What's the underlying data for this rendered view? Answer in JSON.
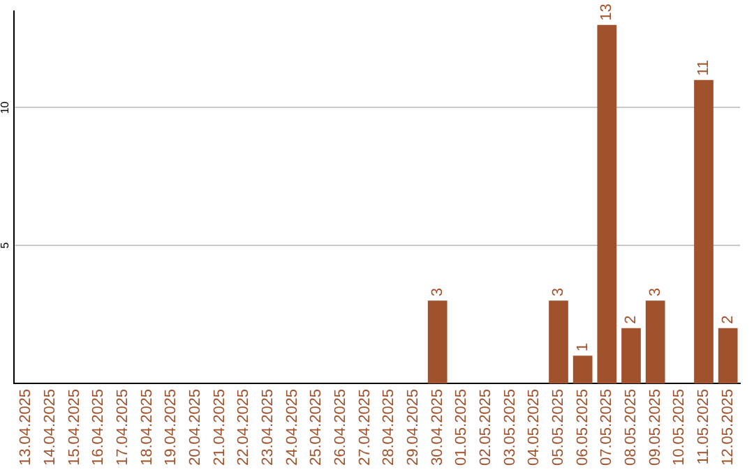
{
  "chart_data": {
    "type": "bar",
    "categories": [
      "13.04.2025",
      "14.04.2025",
      "15.04.2025",
      "16.04.2025",
      "17.04.2025",
      "18.04.2025",
      "19.04.2025",
      "20.04.2025",
      "21.04.2025",
      "22.04.2025",
      "23.04.2025",
      "24.04.2025",
      "25.04.2025",
      "26.04.2025",
      "27.04.2025",
      "28.04.2025",
      "29.04.2025",
      "30.04.2025",
      "01.05.2025",
      "02.05.2025",
      "03.05.2025",
      "04.05.2025",
      "05.05.2025",
      "06.05.2025",
      "07.05.2025",
      "08.05.2025",
      "09.05.2025",
      "10.05.2025",
      "11.05.2025",
      "12.05.2025"
    ],
    "values": [
      0,
      0,
      0,
      0,
      0,
      0,
      0,
      0,
      0,
      0,
      0,
      0,
      0,
      0,
      0,
      0,
      0,
      3,
      0,
      0,
      0,
      0,
      3,
      1,
      13,
      2,
      3,
      0,
      11,
      2
    ],
    "value_labels": [
      null,
      null,
      null,
      null,
      null,
      null,
      null,
      null,
      null,
      null,
      null,
      null,
      null,
      null,
      null,
      null,
      null,
      "3",
      null,
      null,
      null,
      null,
      "3",
      "1",
      "13",
      "2",
      "3",
      null,
      "11",
      "2"
    ],
    "color": "#a0522d",
    "ylim": [
      0,
      13.5
    ],
    "yticks": [
      5,
      10
    ],
    "grid": "y",
    "legend": false
  }
}
